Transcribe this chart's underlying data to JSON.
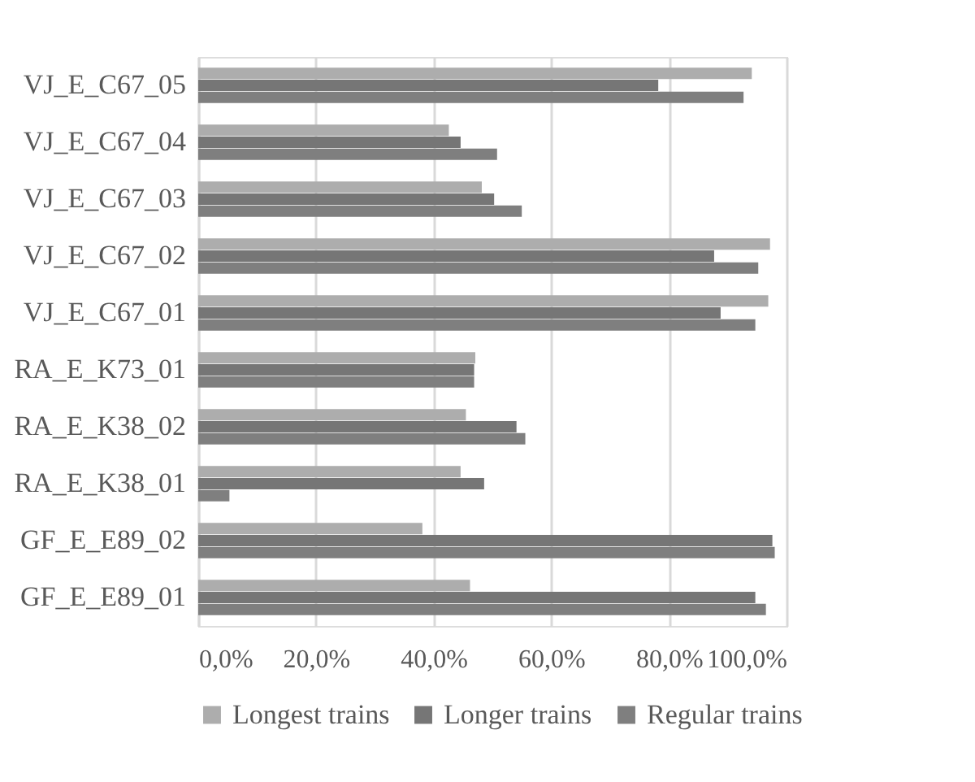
{
  "chart_data": {
    "type": "bar",
    "orientation": "horizontal",
    "categories": [
      "VJ_E_C67_05",
      "VJ_E_C67_04",
      "VJ_E_C67_03",
      "VJ_E_C67_02",
      "VJ_E_C67_01",
      "RA_E_K73_01",
      "RA_E_K38_02",
      "RA_E_K38_01",
      "GF_E_E89_02",
      "GF_E_E89_01"
    ],
    "series": [
      {
        "name": "Longest trains",
        "color": "#adadad",
        "values": [
          94.1,
          42.6,
          48.2,
          97.2,
          96.9,
          47.1,
          45.5,
          44.6,
          38.1,
          46.2
        ]
      },
      {
        "name": "Longer trains",
        "color": "#767676",
        "values": [
          78.2,
          44.6,
          50.3,
          87.7,
          88.8,
          46.9,
          54.1,
          48.6,
          97.6,
          94.7
        ]
      },
      {
        "name": "Regular trains",
        "color": "#7f7f7f",
        "values": [
          92.7,
          50.8,
          55.0,
          95.2,
          94.7,
          46.9,
          55.6,
          5.3,
          98.0,
          96.5
        ]
      }
    ],
    "xlim": [
      0,
      100
    ],
    "xticks": [
      {
        "value": 0,
        "label": "0,0%"
      },
      {
        "value": 20,
        "label": "20,0%"
      },
      {
        "value": 40,
        "label": "40,0%"
      },
      {
        "value": 60,
        "label": "60,0%"
      },
      {
        "value": 80,
        "label": "80,0%"
      },
      {
        "value": 100,
        "label": "100,0%"
      }
    ],
    "grid": "x",
    "legend": "bottom"
  }
}
